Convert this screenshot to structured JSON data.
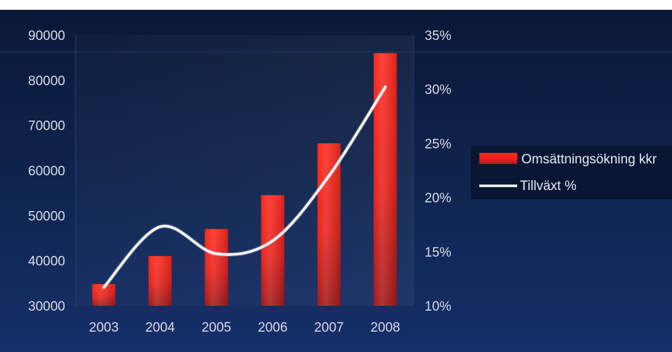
{
  "chart_data": {
    "type": "bar",
    "title": "",
    "categories": [
      "2003",
      "2004",
      "2005",
      "2006",
      "2007",
      "2008"
    ],
    "series": [
      {
        "name": "Omsättningsökning kkr",
        "type": "bar",
        "axis": "left",
        "values": [
          34800,
          41000,
          47000,
          54500,
          66000,
          86000
        ],
        "color": "#e8231d"
      },
      {
        "name": "Tillväxt %",
        "type": "line",
        "axis": "right",
        "values": [
          11.7,
          17.3,
          14.8,
          16.0,
          22.0,
          30.2
        ],
        "color": "#ffffff"
      }
    ],
    "y_left": {
      "ylim": [
        30000,
        90000
      ],
      "ticks": [
        "30000",
        "40000",
        "50000",
        "60000",
        "70000",
        "80000",
        "90000"
      ]
    },
    "y_right": {
      "ylim": [
        10,
        35
      ],
      "ticks": [
        "10%",
        "15%",
        "20%",
        "25%",
        "30%",
        "35%"
      ]
    },
    "legend": {
      "position": "right"
    },
    "background": "#0d1f45",
    "grid": false
  }
}
